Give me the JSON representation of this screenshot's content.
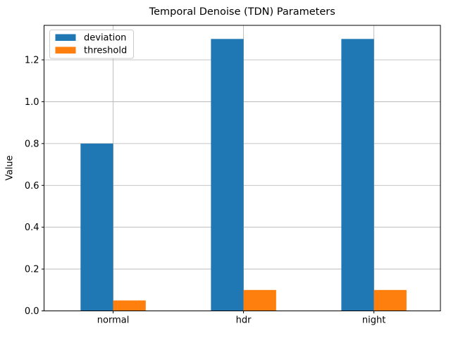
{
  "figure": {
    "kind": "matplotlib-figure",
    "background": "#ffffff"
  },
  "chart_data": {
    "type": "bar",
    "title": "Temporal Denoise (TDN) Parameters",
    "xlabel": "",
    "ylabel": "Value",
    "categories": [
      "normal",
      "hdr",
      "night"
    ],
    "series": [
      {
        "name": "deviation",
        "color": "#1f77b4",
        "values": [
          0.8,
          1.3,
          1.3
        ]
      },
      {
        "name": "threshold",
        "color": "#ff7f0e",
        "values": [
          0.05,
          0.1,
          0.1
        ]
      }
    ],
    "yticks": [
      0.0,
      0.2,
      0.4,
      0.6,
      0.8,
      1.0,
      1.2
    ],
    "ylim": [
      0,
      1.365
    ],
    "xlim": [
      -0.53,
      2.51
    ],
    "bar_width": 0.25,
    "group_offsets": [
      -0.125,
      0.125
    ],
    "grid": true,
    "grid_color": "#b0b0b0",
    "spine_color": "#000000",
    "legend": {
      "position": "upper-left",
      "entries": [
        "deviation",
        "threshold"
      ],
      "border_color": "#cccccc",
      "background": "#ffffff"
    }
  }
}
